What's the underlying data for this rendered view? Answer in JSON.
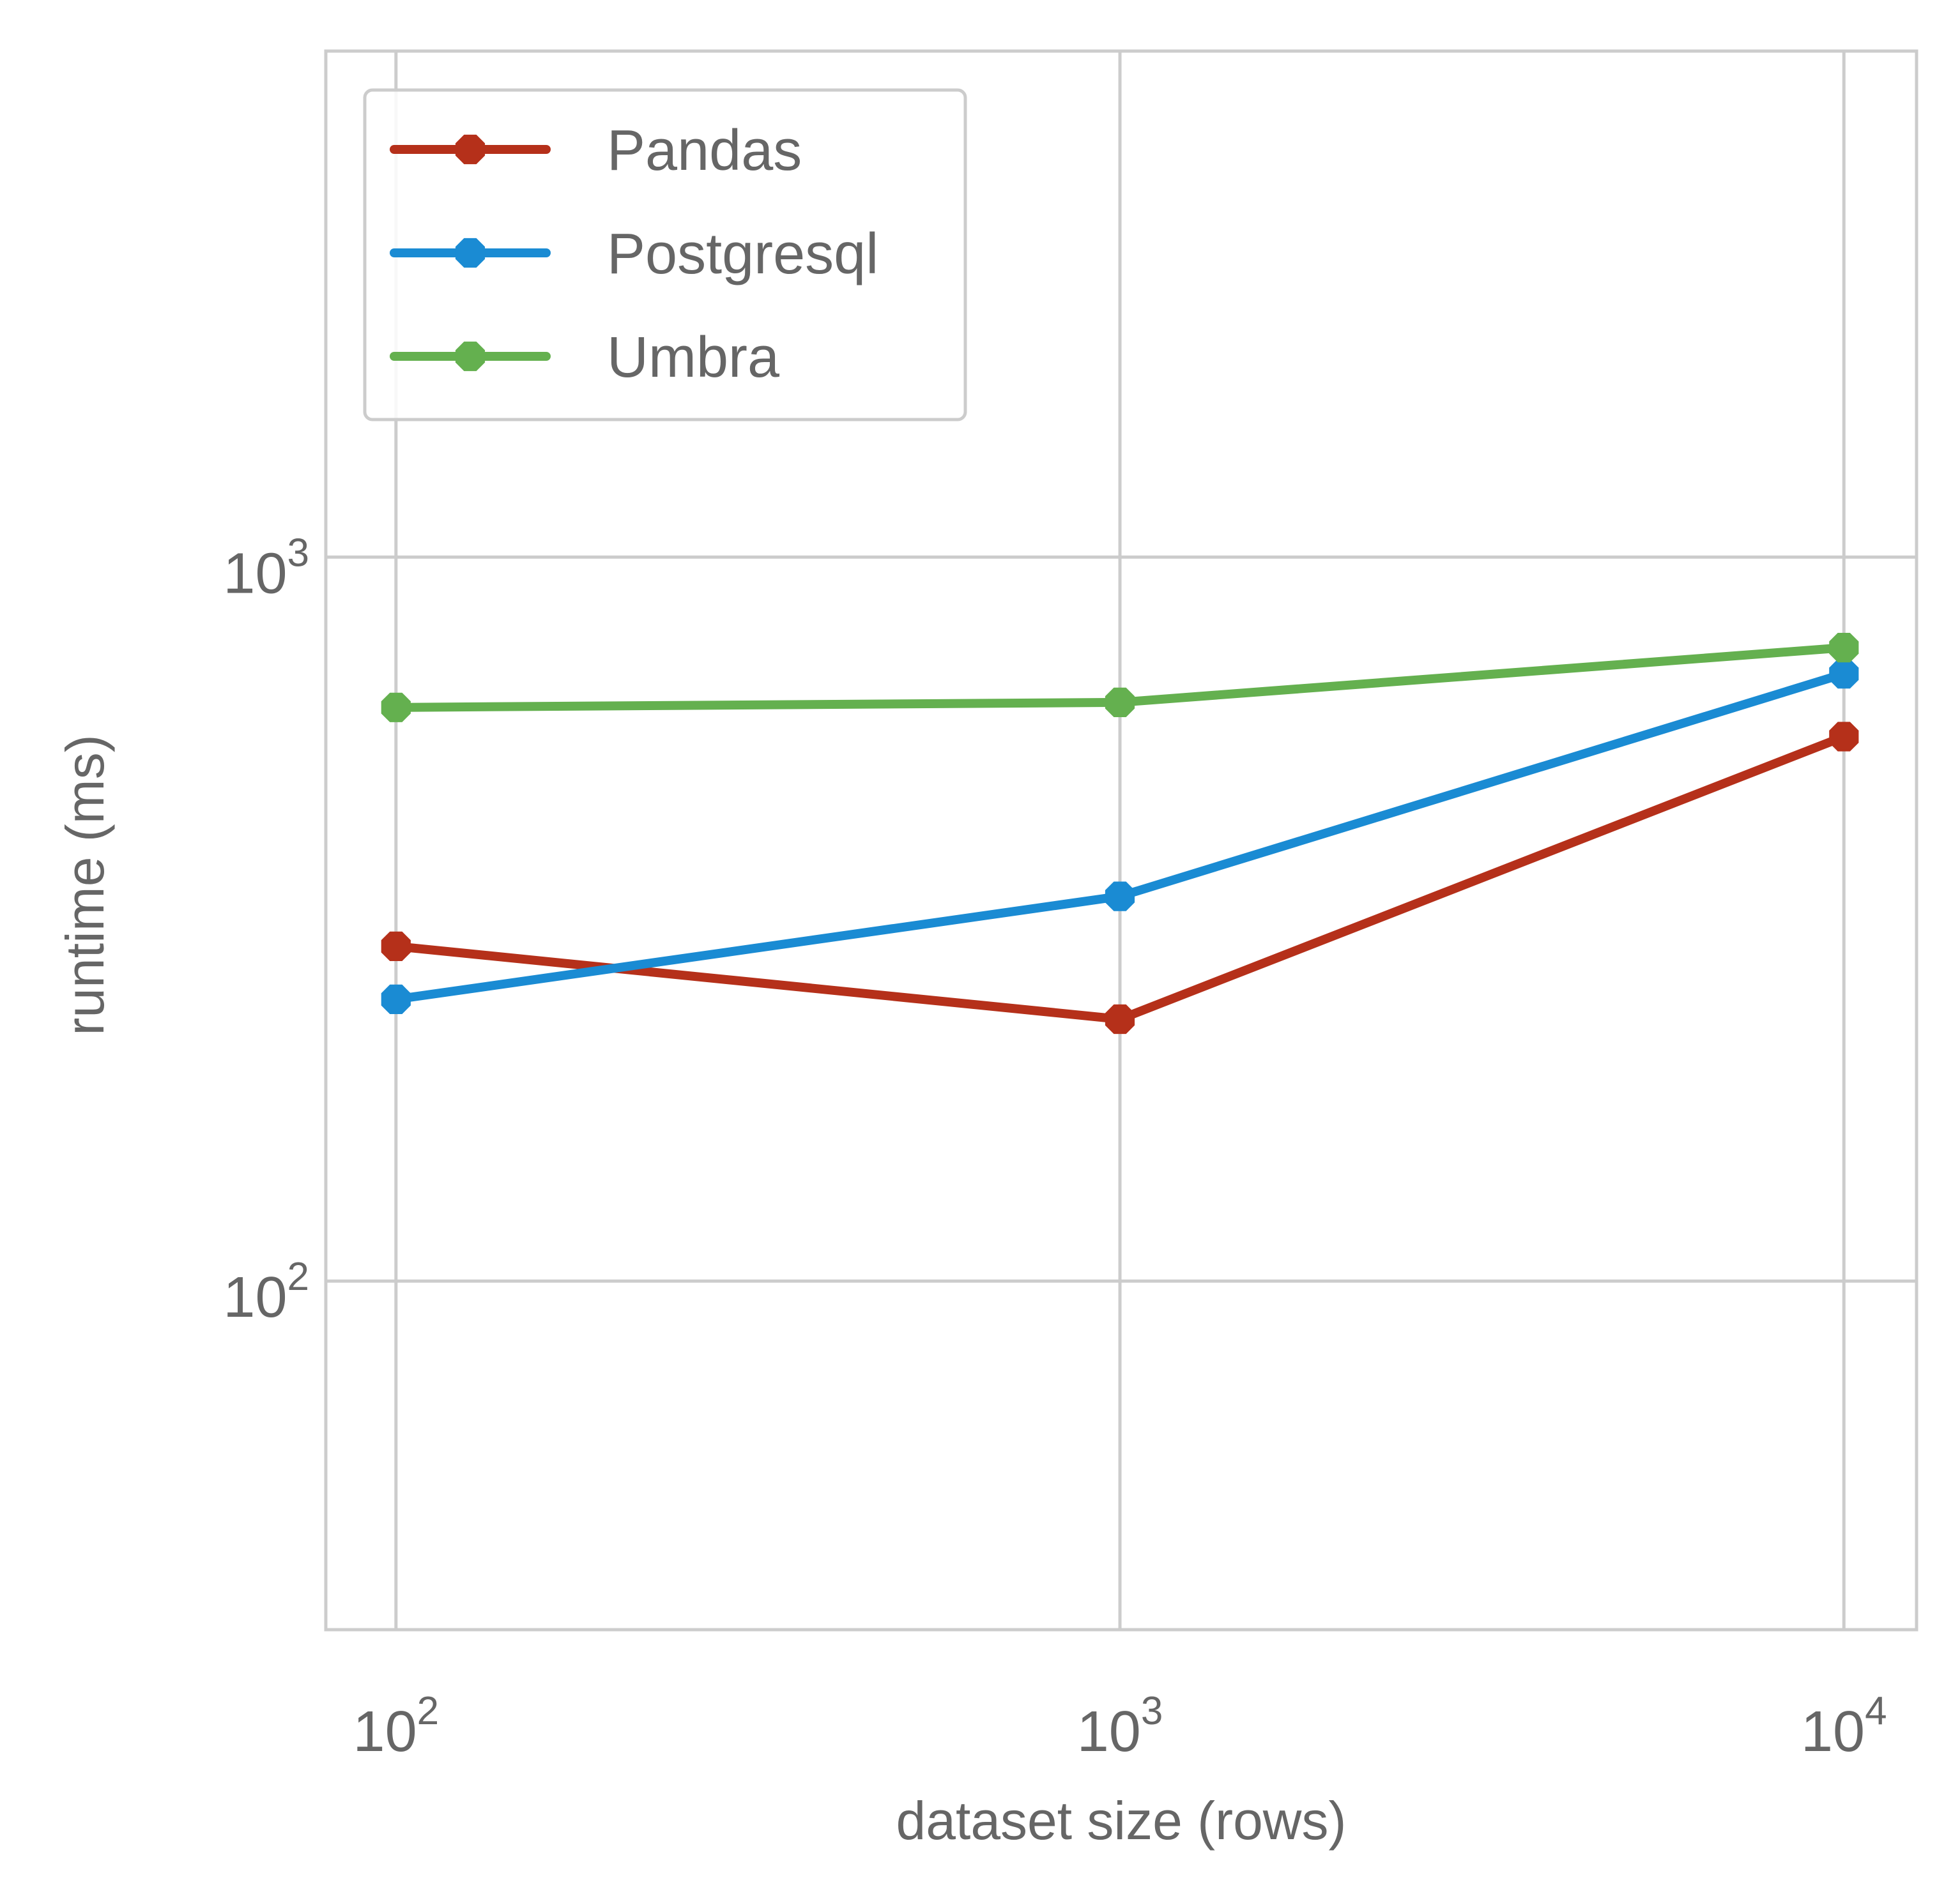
{
  "chart_data": {
    "type": "line",
    "title": "",
    "xlabel": "dataset size (rows)",
    "ylabel": "runtime (ms)",
    "xscale": "log",
    "yscale": "log",
    "xlim": [
      80,
      12600
    ],
    "ylim": [
      33,
      5000
    ],
    "grid": true,
    "legend_position": "top-left",
    "x_ticks": [
      {
        "value": 100,
        "base": "10",
        "exp": "2"
      },
      {
        "value": 1000,
        "base": "10",
        "exp": "3"
      },
      {
        "value": 10000,
        "base": "10",
        "exp": "4"
      }
    ],
    "y_ticks": [
      {
        "value": 100,
        "base": "10",
        "exp": "2"
      },
      {
        "value": 1000,
        "base": "10",
        "exp": "3"
      }
    ],
    "x": [
      100,
      1000,
      10000
    ],
    "series": [
      {
        "name": "Pandas",
        "color": "#b5301a",
        "values": [
          290,
          230,
          565
        ]
      },
      {
        "name": "Postgresql",
        "color": "#1a8bd3",
        "values": [
          245,
          340,
          690
        ]
      },
      {
        "name": "Umbra",
        "color": "#64b04f",
        "values": [
          620,
          630,
          750
        ]
      }
    ]
  }
}
